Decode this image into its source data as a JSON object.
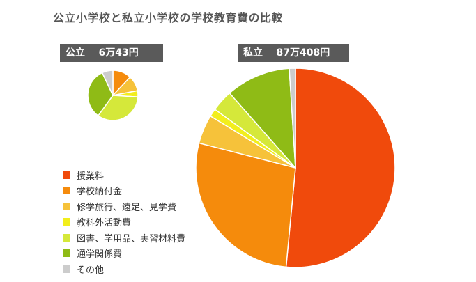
{
  "title": "公立小学校と私立小学校の学校教育費の比較",
  "chart_data": [
    {
      "type": "pie",
      "label": "公立",
      "total": "6万43円",
      "categories": [
        "授業料",
        "学校納付金",
        "修学旅行、遠足、見学費",
        "教科外活動費",
        "図書、学用品、実習材料費",
        "通学関係費",
        "その他"
      ],
      "values": [
        0,
        12,
        10,
        4,
        34,
        33,
        7
      ]
    },
    {
      "type": "pie",
      "label": "私立",
      "total": "87万408円",
      "categories": [
        "授業料",
        "学校納付金",
        "修学旅行、遠足、見学費",
        "教科外活動費",
        "図書、学用品、実習材料費",
        "通学関係費",
        "その他"
      ],
      "values": [
        51.5,
        27.5,
        4.7,
        1.3,
        3.5,
        10.5,
        1.0
      ]
    }
  ],
  "legend": [
    {
      "label": "授業料",
      "color": "#f04a0c"
    },
    {
      "label": "学校納付金",
      "color": "#f58b0c"
    },
    {
      "label": "修学旅行、遠足、見学費",
      "color": "#f6c23a"
    },
    {
      "label": "教科外活動費",
      "color": "#f2ee1c"
    },
    {
      "label": "図書、学用品、実習材料費",
      "color": "#d5e83a"
    },
    {
      "label": "通学関係費",
      "color": "#8fbb16"
    },
    {
      "label": "その他",
      "color": "#cccccc"
    }
  ]
}
